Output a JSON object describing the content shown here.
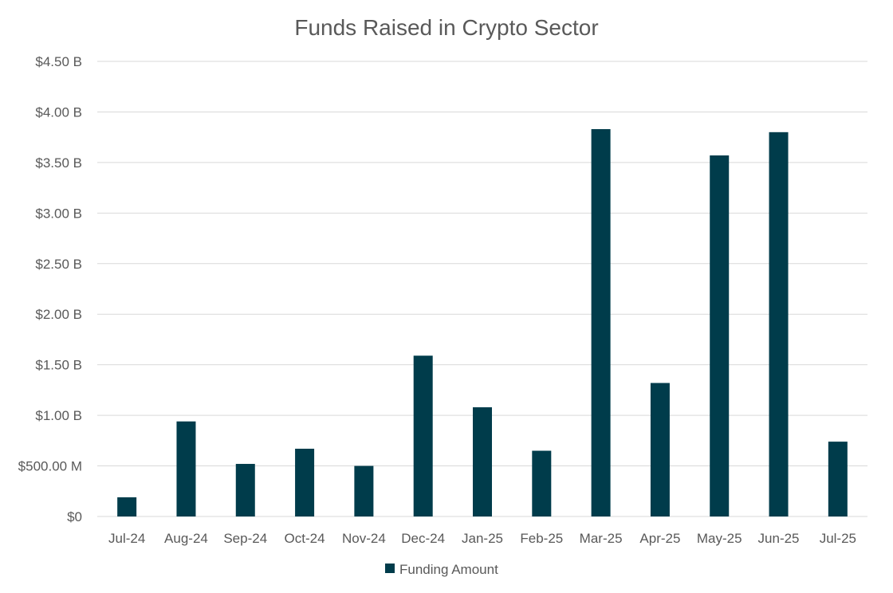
{
  "chart_data": {
    "type": "bar",
    "title": "Funds Raised in Crypto Sector",
    "xlabel": "",
    "ylabel": "",
    "categories": [
      "Jul-24",
      "Aug-24",
      "Sep-24",
      "Oct-24",
      "Nov-24",
      "Dec-24",
      "Jan-25",
      "Feb-25",
      "Mar-25",
      "Apr-25",
      "May-25",
      "Jun-25",
      "Jul-25"
    ],
    "series": [
      {
        "name": "Funding Amount",
        "color": "#003c4b",
        "values": [
          0.19,
          0.94,
          0.52,
          0.67,
          0.5,
          1.59,
          1.08,
          0.65,
          3.83,
          1.32,
          3.57,
          3.8,
          0.74
        ]
      }
    ],
    "ylim": [
      0,
      4.5
    ],
    "yticks": [
      0,
      0.5,
      1.0,
      1.5,
      2.0,
      2.5,
      3.0,
      3.5,
      4.0,
      4.5
    ],
    "ytick_labels": [
      "$0",
      "$500.00 M",
      "$1.00 B",
      "$1.50 B",
      "$2.00 B",
      "$2.50 B",
      "$3.00 B",
      "$3.50 B",
      "$4.00 B",
      "$4.50 B"
    ],
    "y_unit": "USD billions",
    "grid": true,
    "legend_position": "bottom"
  }
}
